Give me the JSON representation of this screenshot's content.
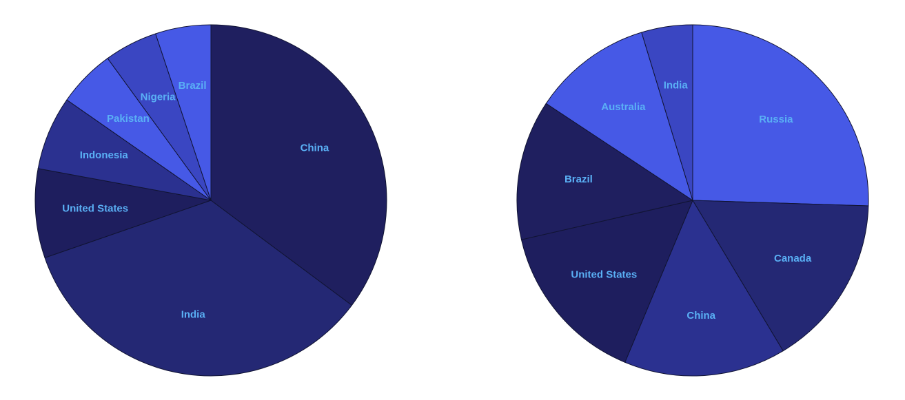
{
  "chart_data": [
    {
      "type": "pie",
      "title": "",
      "slices": [
        {
          "label": "China",
          "value": 35.2,
          "color": "#1f1f5f"
        },
        {
          "label": "India",
          "value": 34.5,
          "color": "#242874"
        },
        {
          "label": "United States",
          "value": 8.2,
          "color": "#1e1e5e"
        },
        {
          "label": "Indonesia",
          "value": 6.8,
          "color": "#2b3190"
        },
        {
          "label": "Pakistan",
          "value": 5.3,
          "color": "#4659e6"
        },
        {
          "label": "Nigeria",
          "value": 4.9,
          "color": "#3a46c2"
        },
        {
          "label": "Brazil",
          "value": 5.1,
          "color": "#4659e6"
        }
      ]
    },
    {
      "type": "pie",
      "title": "",
      "slices": [
        {
          "label": "Russia",
          "value": 25.5,
          "color": "#4659e6"
        },
        {
          "label": "Canada",
          "value": 15.9,
          "color": "#242874"
        },
        {
          "label": "China",
          "value": 14.9,
          "color": "#2b3190"
        },
        {
          "label": "United States",
          "value": 15.1,
          "color": "#1e1e5e"
        },
        {
          "label": "Brazil",
          "value": 12.9,
          "color": "#1f1f5f"
        },
        {
          "label": "Australia",
          "value": 11.0,
          "color": "#4659e6"
        },
        {
          "label": "India",
          "value": 4.7,
          "color": "#3a46c2"
        }
      ]
    }
  ]
}
